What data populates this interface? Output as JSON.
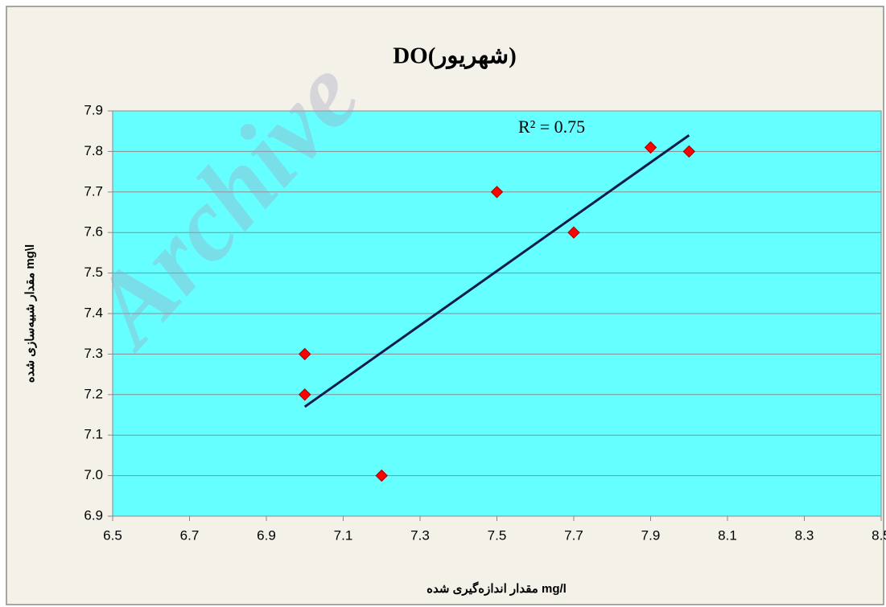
{
  "chart_data": {
    "type": "scatter",
    "title": "DO(شهریور)",
    "xlabel": "مقدار اندازه‌گیری شده   mg/l",
    "ylabel": "مقدار شبیه‌سازی شده   mg\\l",
    "annotation": "R² = 0.75",
    "watermark": "Archive",
    "series": [
      {
        "name": "DO",
        "color": "#ff0000",
        "x": [
          7.0,
          7.0,
          7.2,
          7.5,
          7.7,
          7.9,
          8.0
        ],
        "values": [
          7.3,
          7.2,
          7.0,
          7.7,
          7.6,
          7.81,
          7.8
        ]
      }
    ],
    "trendline": {
      "color": "#0d1b4f",
      "x": [
        7.0,
        8.0
      ],
      "values": [
        7.17,
        7.84
      ]
    },
    "xlim": [
      6.5,
      8.5
    ],
    "xticks": [
      6.5,
      6.7,
      6.9,
      7.1,
      7.3,
      7.5,
      7.7,
      7.9,
      8.1,
      8.3,
      8.5
    ],
    "ylim": [
      6.9,
      7.9
    ],
    "yticks": [
      6.9,
      {
        "value": 7,
        "label": "7.0"
      },
      7.1,
      7.2,
      7.3,
      7.4,
      7.5,
      7.6,
      7.7,
      7.8,
      7.9
    ],
    "grid": true,
    "plot_background": "#66ffff"
  }
}
